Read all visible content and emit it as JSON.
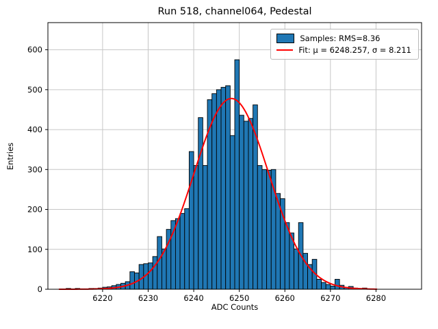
{
  "title": "Run 518, channel064, Pedestal",
  "axes": {
    "xlabel": "ADC Counts",
    "ylabel": "Entries"
  },
  "chart_data": {
    "type": "histogram",
    "title": "Run 518, channel064, Pedestal",
    "xlabel": "ADC Counts",
    "ylabel": "Entries",
    "grid": true,
    "legend_position": "upper right",
    "xlim": [
      6208,
      6290
    ],
    "ylim": [
      0,
      668
    ],
    "xticks": [
      6220,
      6230,
      6240,
      6250,
      6260,
      6270,
      6280
    ],
    "yticks": [
      0,
      100,
      200,
      300,
      400,
      500,
      600
    ],
    "bin_start": 6212,
    "bin_width": 1,
    "counts": [
      2,
      1,
      2,
      1,
      1,
      2,
      2,
      3,
      5,
      6,
      9,
      12,
      15,
      19,
      44,
      41,
      62,
      64,
      66,
      82,
      132,
      101,
      150,
      172,
      177,
      190,
      202,
      345,
      310,
      430,
      310,
      475,
      490,
      500,
      506,
      510,
      385,
      575,
      436,
      421,
      428,
      462,
      310,
      300,
      298,
      300,
      240,
      227,
      167,
      141,
      101,
      167,
      90,
      62,
      75,
      25,
      17,
      12,
      8,
      25,
      10,
      5,
      7,
      3,
      2,
      3,
      1
    ],
    "bar_color": "#1f77b4",
    "bar_edge_color": "#000000",
    "grid_color": "#c6c6c6",
    "fit": {
      "shape": "gaussian",
      "mu": 6248.257,
      "sigma": 8.211,
      "peak_height": 478,
      "color": "#ff0000",
      "draw_range": [
        6210.5,
        6280.4
      ]
    },
    "legend": {
      "entries": [
        {
          "label": "Samples: RMS=8.36",
          "swatch": "patch",
          "swatch_name": "histogram-patch-swatch"
        },
        {
          "label": "Fit: μ = 6248.257, σ = 8.211",
          "swatch": "line",
          "swatch_name": "fit-line-swatch"
        }
      ]
    }
  }
}
